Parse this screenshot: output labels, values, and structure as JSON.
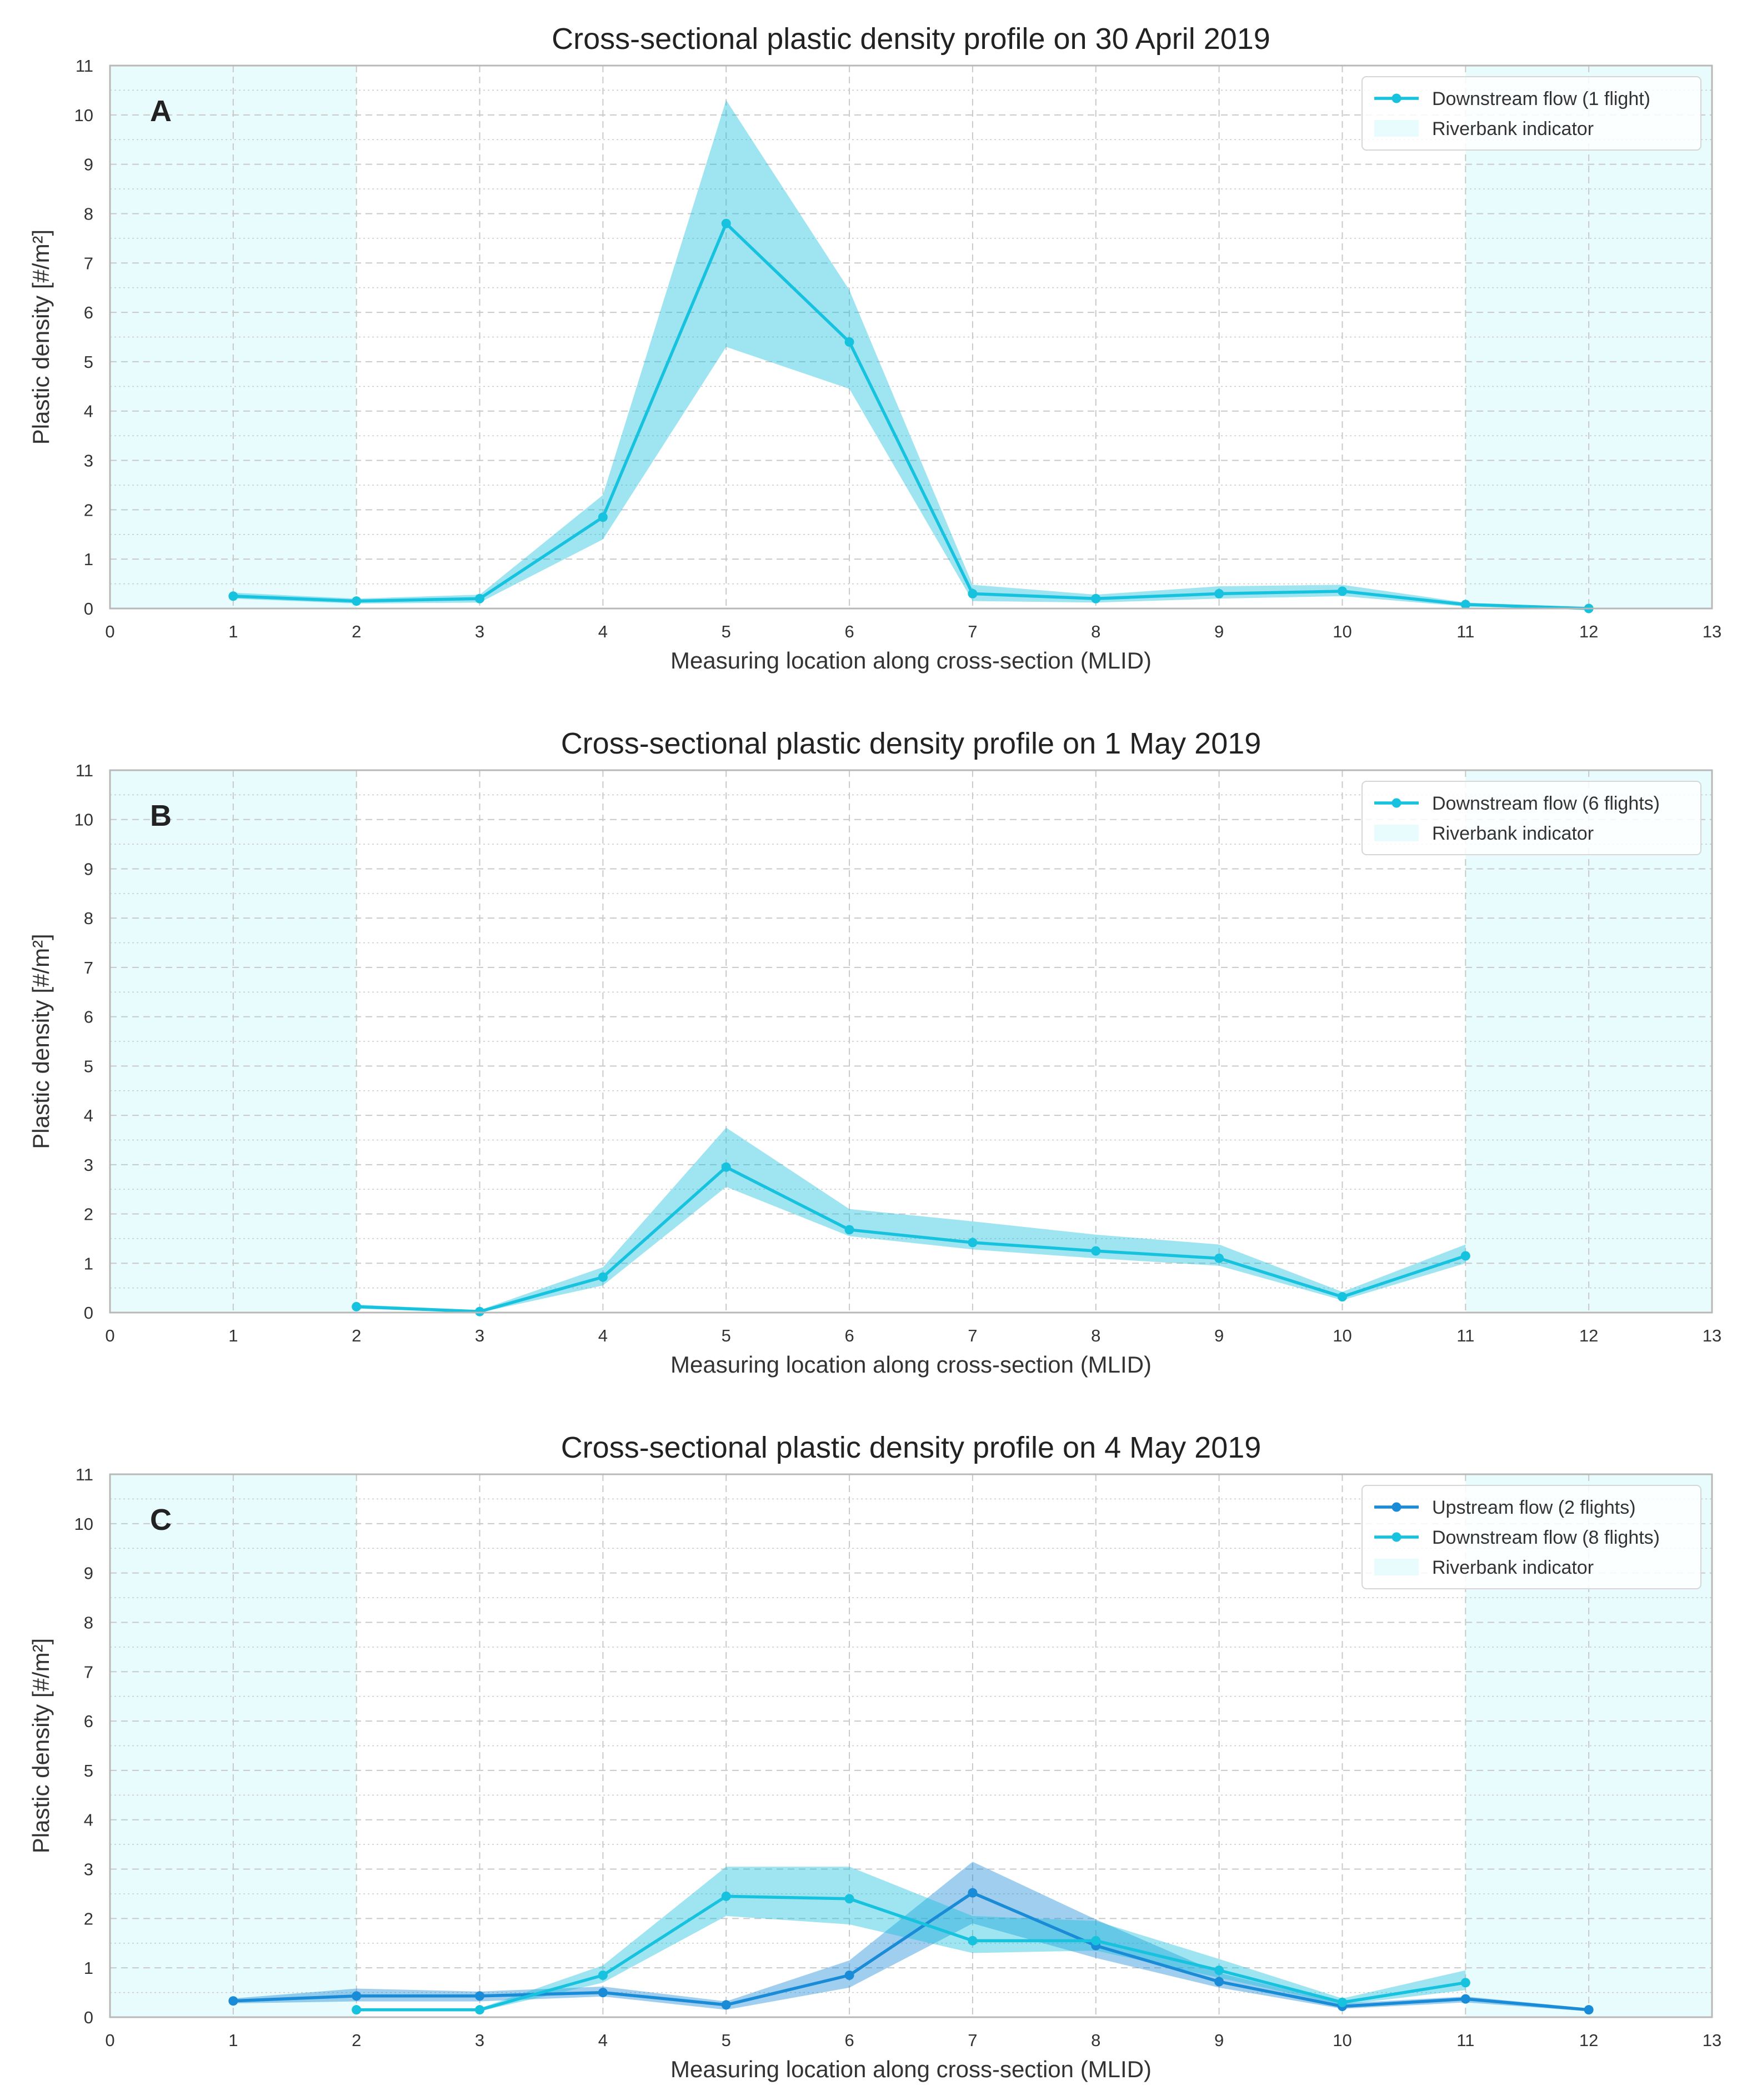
{
  "colors": {
    "downstream": "#17c2de",
    "upstream": "#1a8bd6",
    "riverbank": "#e8fbfd",
    "grid": "#c9c9c9",
    "axis_frame": "#b8b8b8"
  },
  "chart_data": [
    {
      "type": "line",
      "panel_label": "A",
      "title": "Cross-sectional plastic density profile on 30 April 2019",
      "xlabel": "Measuring location along cross-section (MLID)",
      "ylabel": "Plastic density [#/m²]",
      "xlim": [
        0,
        13
      ],
      "ylim": [
        0,
        11
      ],
      "xticks": [
        "0",
        "1",
        "2",
        "3",
        "4",
        "5",
        "6",
        "7",
        "8",
        "9",
        "10",
        "11",
        "12",
        "13"
      ],
      "yticks": [
        "0",
        "1",
        "2",
        "3",
        "4",
        "5",
        "6",
        "7",
        "8",
        "9",
        "10",
        "11"
      ],
      "riverbank_spans": [
        [
          0,
          2
        ],
        [
          11,
          13
        ]
      ],
      "legend": [
        "Downstream flow (1 flight)",
        "Riverbank indicator"
      ],
      "series": [
        {
          "name": "Downstream flow (1 flight)",
          "color_key": "downstream",
          "x": [
            1,
            2,
            3,
            4,
            5,
            6,
            7,
            8,
            9,
            10,
            11,
            12
          ],
          "values": [
            0.25,
            0.15,
            0.2,
            1.85,
            7.8,
            5.4,
            0.3,
            0.2,
            0.3,
            0.35,
            0.08,
            0.0
          ],
          "lower": [
            0.2,
            0.1,
            0.12,
            1.4,
            5.3,
            4.45,
            0.15,
            0.12,
            0.2,
            0.25,
            0.04,
            0.0
          ],
          "upper": [
            0.32,
            0.2,
            0.28,
            2.3,
            10.3,
            6.45,
            0.48,
            0.28,
            0.45,
            0.48,
            0.12,
            0.02
          ]
        }
      ]
    },
    {
      "type": "line",
      "panel_label": "B",
      "title": "Cross-sectional plastic density profile on 1 May 2019",
      "xlabel": "Measuring location along cross-section (MLID)",
      "ylabel": "Plastic density [#/m²]",
      "xlim": [
        0,
        13
      ],
      "ylim": [
        0,
        11
      ],
      "xticks": [
        "0",
        "1",
        "2",
        "3",
        "4",
        "5",
        "6",
        "7",
        "8",
        "9",
        "10",
        "11",
        "12",
        "13"
      ],
      "yticks": [
        "0",
        "1",
        "2",
        "3",
        "4",
        "5",
        "6",
        "7",
        "8",
        "9",
        "10",
        "11"
      ],
      "riverbank_spans": [
        [
          0,
          2
        ],
        [
          11,
          13
        ]
      ],
      "legend": [
        "Downstream flow (6 flights)",
        "Riverbank indicator"
      ],
      "series": [
        {
          "name": "Downstream flow (6 flights)",
          "color_key": "downstream",
          "x": [
            2,
            3,
            4,
            5,
            6,
            7,
            8,
            9,
            10,
            11
          ],
          "values": [
            0.12,
            0.02,
            0.72,
            2.95,
            1.68,
            1.42,
            1.25,
            1.1,
            0.32,
            1.15
          ],
          "lower": [
            0.08,
            0.0,
            0.55,
            2.55,
            1.55,
            1.28,
            1.1,
            0.95,
            0.25,
            1.0
          ],
          "upper": [
            0.16,
            0.05,
            0.92,
            3.75,
            2.1,
            1.85,
            1.58,
            1.38,
            0.42,
            1.38
          ]
        }
      ]
    },
    {
      "type": "line",
      "panel_label": "C",
      "title": "Cross-sectional plastic density profile on 4 May 2019",
      "xlabel": "Measuring location along cross-section (MLID)",
      "ylabel": "Plastic density [#/m²]",
      "xlim": [
        0,
        13
      ],
      "ylim": [
        0,
        11
      ],
      "xticks": [
        "0",
        "1",
        "2",
        "3",
        "4",
        "5",
        "6",
        "7",
        "8",
        "9",
        "10",
        "11",
        "12",
        "13"
      ],
      "yticks": [
        "0",
        "1",
        "2",
        "3",
        "4",
        "5",
        "6",
        "7",
        "8",
        "9",
        "10",
        "11"
      ],
      "riverbank_spans": [
        [
          0,
          2
        ],
        [
          11,
          13
        ]
      ],
      "legend": [
        "Upstream flow (2 flights)",
        "Downstream flow (8 flights)",
        "Riverbank indicator"
      ],
      "series": [
        {
          "name": "Upstream flow (2 flights)",
          "color_key": "upstream",
          "x": [
            1,
            2,
            3,
            4,
            5,
            6,
            7,
            8,
            9,
            10,
            11,
            12
          ],
          "values": [
            0.33,
            0.43,
            0.43,
            0.5,
            0.25,
            0.85,
            2.52,
            1.45,
            0.72,
            0.22,
            0.37,
            0.15
          ],
          "lower": [
            0.28,
            0.32,
            0.32,
            0.42,
            0.15,
            0.6,
            1.9,
            1.2,
            0.6,
            0.17,
            0.3,
            0.12
          ],
          "upper": [
            0.38,
            0.58,
            0.52,
            0.62,
            0.32,
            1.15,
            3.15,
            1.98,
            0.9,
            0.28,
            0.42,
            0.18
          ]
        },
        {
          "name": "Downstream flow (8 flights)",
          "color_key": "downstream",
          "x": [
            2,
            3,
            4,
            5,
            6,
            7,
            8,
            9,
            10,
            11
          ],
          "values": [
            0.15,
            0.15,
            0.85,
            2.45,
            2.4,
            1.55,
            1.55,
            0.95,
            0.3,
            0.7
          ],
          "lower": [
            0.12,
            0.12,
            0.7,
            2.05,
            1.88,
            1.3,
            1.35,
            0.8,
            0.25,
            0.55
          ],
          "upper": [
            0.18,
            0.18,
            1.05,
            3.05,
            3.05,
            2.05,
            1.95,
            1.18,
            0.38,
            0.95
          ]
        }
      ]
    }
  ]
}
